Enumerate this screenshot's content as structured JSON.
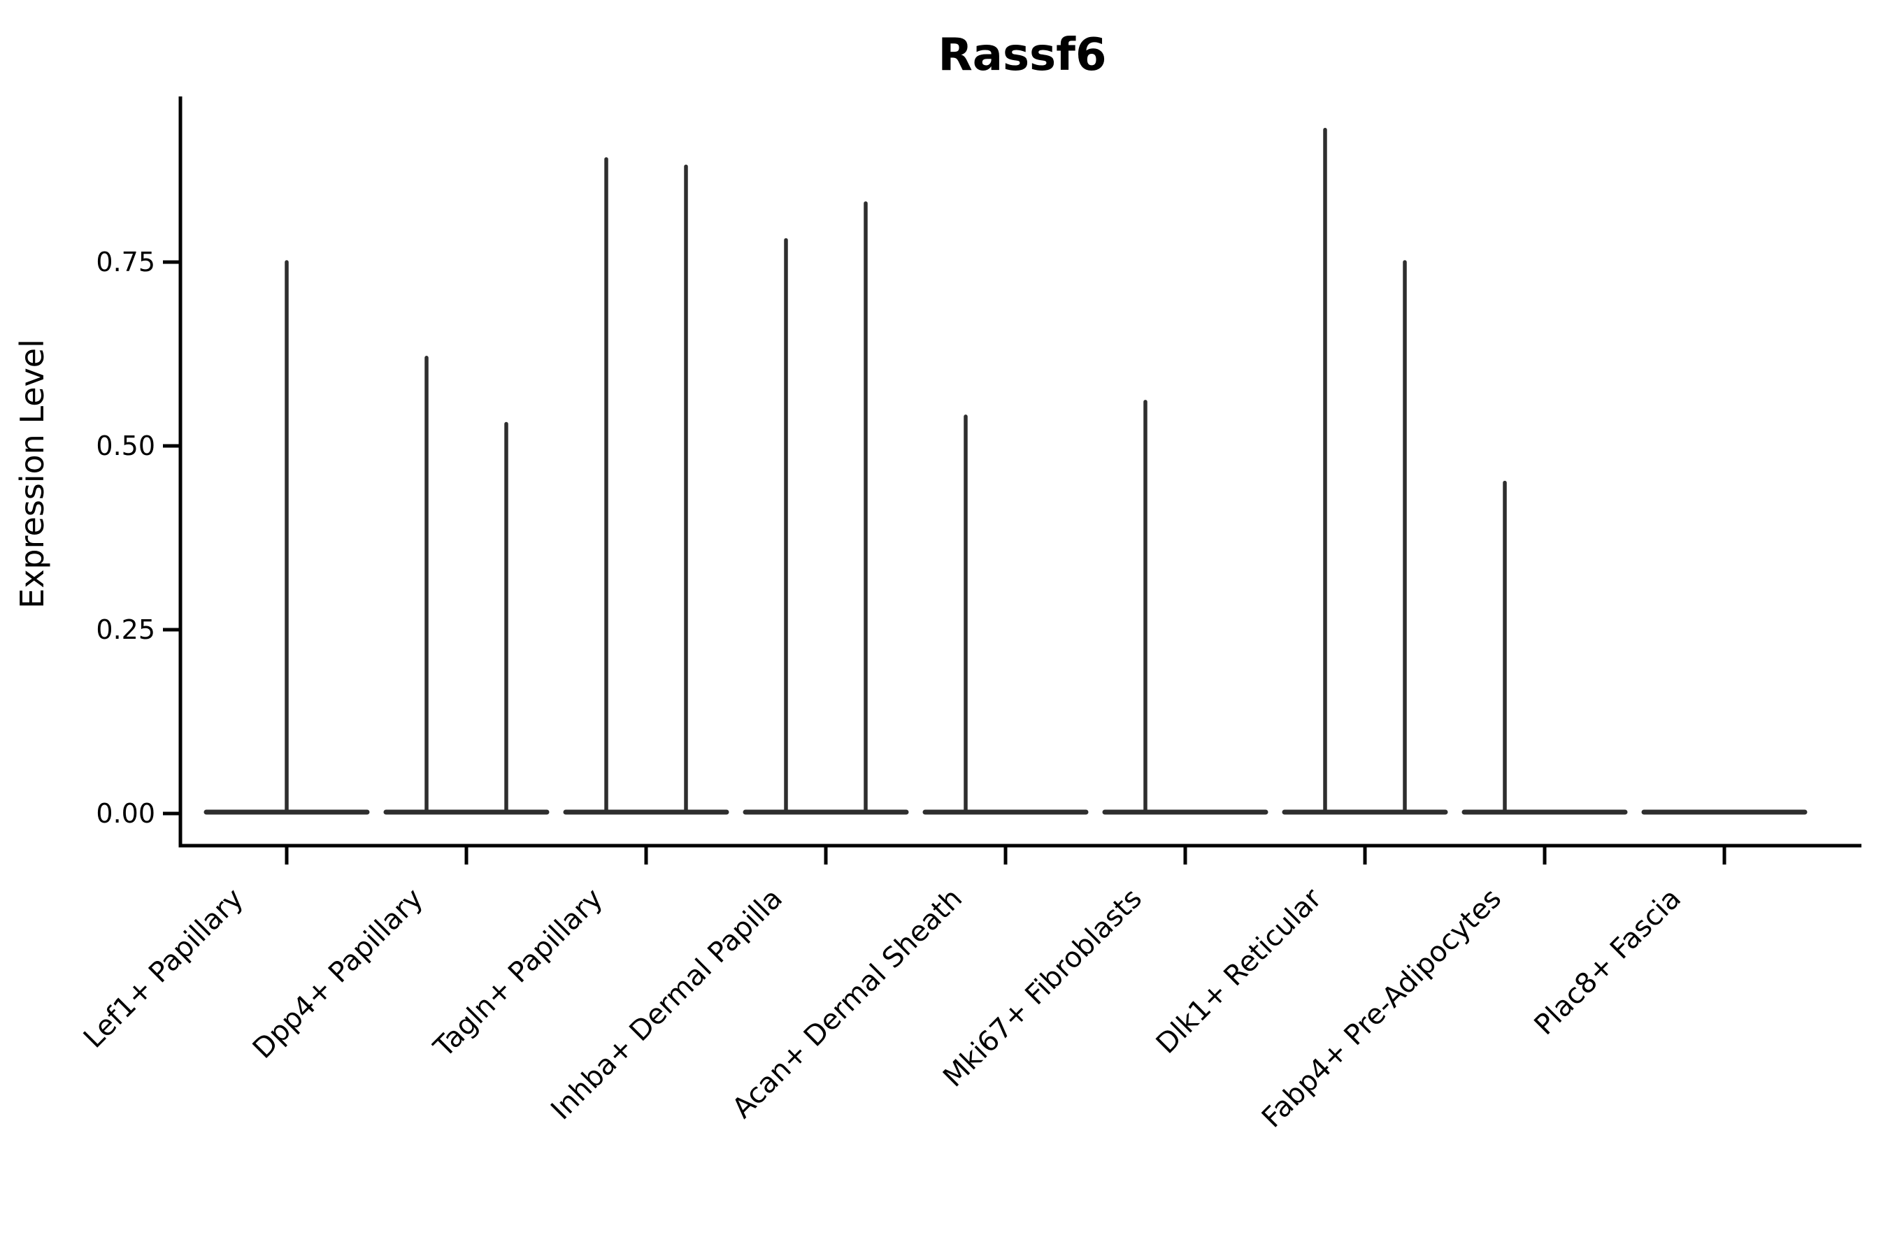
{
  "chart_data": {
    "type": "violin",
    "title": "Rassf6",
    "xlabel": "",
    "ylabel": "Expression Level",
    "ylim": [
      0,
      0.975
    ],
    "grid": false,
    "legend": "none",
    "y_ticks": [
      {
        "label": "0.00",
        "value": 0.0
      },
      {
        "label": "0.25",
        "value": 0.25
      },
      {
        "label": "0.50",
        "value": 0.5
      },
      {
        "label": "0.75",
        "value": 0.75
      }
    ],
    "x_tick_angle_deg": 45,
    "violin_color": "#2e2e2e",
    "axis_color": "#000000",
    "description": "Each category shows a flat violin base at expression 0 with thin spikes rising to the group maximum; split categories have spikes at the left/right quarter positions of the band.",
    "categories": [
      {
        "label": "Lef1+ Papillary",
        "spikes": [
          {
            "position": "center",
            "max": 0.75
          }
        ]
      },
      {
        "label": "Dpp4+ Papillary",
        "spikes": [
          {
            "position": "left",
            "max": 0.62
          },
          {
            "position": "right",
            "max": 0.53
          }
        ]
      },
      {
        "label": "Tagln+ Papillary",
        "spikes": [
          {
            "position": "left",
            "max": 0.89
          },
          {
            "position": "right",
            "max": 0.88
          }
        ]
      },
      {
        "label": "Inhba+ Dermal Papilla",
        "spikes": [
          {
            "position": "left",
            "max": 0.78
          },
          {
            "position": "right",
            "max": 0.83
          }
        ]
      },
      {
        "label": "Acan+ Dermal Sheath",
        "spikes": [
          {
            "position": "left",
            "max": 0.54
          }
        ]
      },
      {
        "label": "Mki67+ Fibroblasts",
        "spikes": [
          {
            "position": "left",
            "max": 0.56
          }
        ]
      },
      {
        "label": "Dlk1+ Reticular",
        "spikes": [
          {
            "position": "left",
            "max": 0.93
          },
          {
            "position": "right",
            "max": 0.75
          }
        ]
      },
      {
        "label": "Fabp4+ Pre-Adipocytes",
        "spikes": [
          {
            "position": "left",
            "max": 0.45
          }
        ]
      },
      {
        "label": "Plac8+ Fascia",
        "spikes": []
      }
    ]
  }
}
